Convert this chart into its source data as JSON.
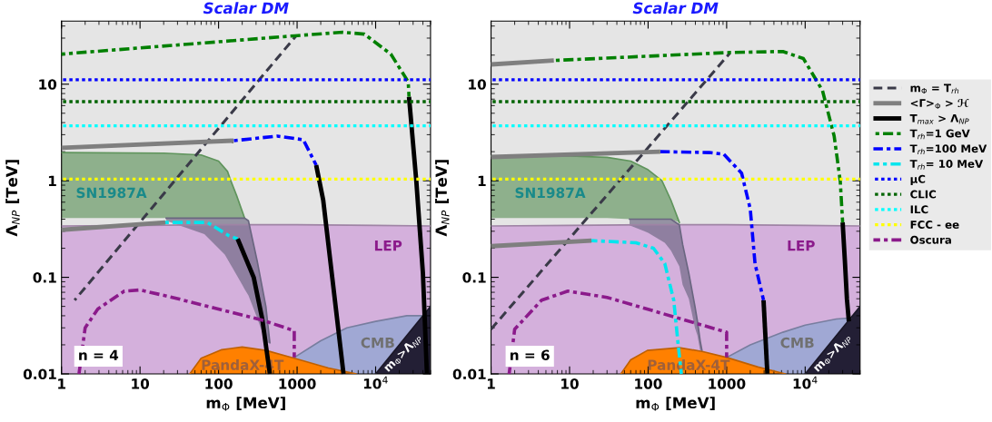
{
  "chart_data": [
    {
      "type": "line",
      "title": "Scalar DM",
      "xlabel": "m$_{Φ}$ [MeV]",
      "ylabel": "Λ$_{NP}$ [TeV]",
      "log": "xy",
      "grid": false,
      "legend": false,
      "xlim": [
        1,
        50000
      ],
      "ylim": [
        0.01,
        45
      ],
      "xticks": [
        1,
        10,
        100,
        1000,
        {
          "value": 10000,
          "label": "10$^{4}$"
        }
      ],
      "yticks": [
        0.01,
        0.1,
        1,
        10
      ],
      "series": [
        {
          "type": "area",
          "color": "#d4b0dc",
          "x": [
            1,
            10,
            100,
            1000,
            10000,
            50000
          ],
          "values": [
            0.34,
            0.345,
            0.35,
            0.35,
            0.345,
            0.34
          ]
        },
        {
          "color": "#5f945c",
          "line_style": "solid",
          "x": [
            1,
            20,
            60,
            100,
            130,
            143,
            170,
            215
          ],
          "lower": [
            0.41,
            0.41,
            0.41,
            0.41,
            0.41,
            0.41,
            0.41,
            0.41
          ],
          "upper": [
            1.96,
            1.93,
            1.85,
            1.6,
            1.25,
            1.0,
            0.7,
            0.41
          ],
          "values": [
            1.96,
            1.93,
            1.85,
            1.6,
            1.25,
            1.0,
            0.7,
            0.41
          ]
        },
        {
          "color": "#6a6680",
          "line_style": "solid",
          "x": [
            21.5,
            66,
            120,
            200,
            215,
            240,
            310,
            400,
            450
          ],
          "lower": [
            0.385,
            0.28,
            0.172,
            0.084,
            0.075,
            0.065,
            0.038,
            0.021,
            0.021
          ],
          "upper": [
            0.41,
            0.41,
            0.41,
            0.41,
            0.41,
            0.385,
            0.148,
            0.05,
            0.021
          ],
          "values": [
            0.41,
            0.41,
            0.41,
            0.41,
            0.41,
            0.385,
            0.148,
            0.05,
            0.021
          ]
        },
        {
          "type": "area",
          "color": "#a0a8d4",
          "x": [
            920,
            2000,
            4300,
            10000,
            25000,
            40000
          ],
          "values": [
            0.0148,
            0.022,
            0.03,
            0.035,
            0.04,
            0.04
          ]
        },
        {
          "type": "area",
          "color": "#ff8000",
          "x": [
            43,
            60,
            110,
            200,
            400,
            920,
            2500,
            5600
          ],
          "values": [
            0.01,
            0.0145,
            0.0178,
            0.019,
            0.0175,
            0.0145,
            0.0115,
            0.01
          ]
        },
        {
          "type": "area",
          "color": "#231f35",
          "x": [
            10000,
            50000
          ],
          "values": [
            0.01,
            0.05
          ]
        },
        {
          "color": "#3a3a48",
          "line_style": "dashed",
          "x": [
            1.47,
            970
          ],
          "values": [
            0.058,
            31.7
          ]
        },
        {
          "color": "#7f7f7f",
          "line_style": "solid",
          "x": [
            1,
            155
          ],
          "values": [
            2.19,
            2.6
          ]
        },
        {
          "color": "#000000",
          "line_style": "solid",
          "x": [
            26600,
            33000,
            40000,
            45000
          ],
          "values": [
            7.4,
            0.98,
            0.11,
            0.01
          ]
        },
        {
          "color": "#008000",
          "line_style": "dashdot",
          "x": [
            1,
            930,
            3800,
            7200,
            15600,
            26000,
            26600
          ],
          "values": [
            20.5,
            31.7,
            34.5,
            33,
            20.5,
            10.6,
            7.4
          ]
        },
        {
          "color": "#0000ff",
          "line_style": "dashdot",
          "x": [
            155,
            560,
            1200,
            1750
          ],
          "values": [
            2.6,
            2.9,
            2.66,
            1.45
          ]
        },
        {
          "color": "#00e5ee",
          "line_style": "dashdot",
          "x": [
            21,
            72,
            135,
            175
          ],
          "values": [
            0.37,
            0.37,
            0.27,
            0.25
          ]
        },
        {
          "color": "#7f7f7f",
          "line_style": "solid",
          "x": [
            1,
            21
          ],
          "values": [
            0.31,
            0.37
          ]
        },
        {
          "color": "#000000",
          "line_style": "solid",
          "x": [
            1750,
            2150,
            2800,
            3900
          ],
          "values": [
            1.45,
            0.63,
            0.1,
            0.01
          ]
        },
        {
          "color": "#000000",
          "line_style": "solid",
          "x": [
            175,
            280,
            360,
            450
          ],
          "values": [
            0.25,
            0.1,
            0.037,
            0.01
          ]
        },
        {
          "color": "#0000ff",
          "line_style": "dotted",
          "x": [
            1,
            50000
          ],
          "values": [
            11.1,
            11.1
          ]
        },
        {
          "color": "#006400",
          "line_style": "dotted",
          "x": [
            1,
            50000
          ],
          "values": [
            6.6,
            6.6
          ]
        },
        {
          "color": "#00ffff",
          "line_style": "dotted",
          "x": [
            1,
            50000
          ],
          "values": [
            3.7,
            3.7
          ]
        },
        {
          "color": "#ffff00",
          "line_style": "dotted",
          "x": [
            1,
            50000
          ],
          "values": [
            1.04,
            1.04
          ]
        },
        {
          "color": "#8b1a8b",
          "line_style": "dashdot",
          "x": [
            1.67,
            2.0,
            2.9,
            6.3,
            10,
            25.8,
            360,
            920,
            920
          ],
          "values": [
            0.01,
            0.03,
            0.047,
            0.072,
            0.074,
            0.062,
            0.036,
            0.028,
            0.0148
          ]
        }
      ],
      "annotations": [
        "SN1987A",
        "LEP",
        "CMB",
        "PandaX-4T",
        "n = 4",
        "m$_{Φ}$>Λ$_{NP}$"
      ]
    },
    {
      "type": "line",
      "title": "Scalar DM",
      "xlabel": "m$_{Φ}$ [MeV]",
      "ylabel": "Λ$_{NP}$ [TeV]",
      "log": "xy",
      "grid": false,
      "legend": "right",
      "xlim": [
        1,
        50000
      ],
      "ylim": [
        0.01,
        45
      ],
      "xticks": [
        1,
        10,
        100,
        1000,
        {
          "value": 10000,
          "label": "10$^{4}$"
        }
      ],
      "yticks": [
        0.01,
        0.1,
        1,
        10
      ],
      "series": [
        {
          "type": "area",
          "color": "#d4b0dc",
          "x": [
            1,
            10,
            100,
            1000,
            10000,
            50000
          ],
          "values": [
            0.34,
            0.345,
            0.35,
            0.35,
            0.345,
            0.34
          ]
        },
        {
          "color": "#5f945c",
          "line_style": "solid",
          "x": [
            1,
            10,
            30,
            60,
            100,
            150,
            195,
            250
          ],
          "lower": [
            0.41,
            0.41,
            0.41,
            0.4,
            0.4,
            0.4,
            0.4,
            0.37
          ],
          "upper": [
            1.8,
            1.8,
            1.75,
            1.6,
            1.3,
            1.0,
            0.63,
            0.37
          ],
          "values": [
            1.8,
            1.8,
            1.75,
            1.6,
            1.3,
            1.0,
            0.63,
            0.37
          ]
        },
        {
          "color": "#6a6680",
          "line_style": "solid",
          "x": [
            58,
            100,
            163,
            195,
            250,
            275,
            330,
            395,
            425,
            460,
            485
          ],
          "lower": [
            0.345,
            0.29,
            0.228,
            0.19,
            0.13,
            0.084,
            0.06,
            0.03,
            0.025,
            0.0175,
            0.0175
          ],
          "upper": [
            0.4,
            0.4,
            0.4,
            0.4,
            0.35,
            0.22,
            0.11,
            0.05,
            0.035,
            0.022,
            0.0175
          ],
          "values": [
            0.4,
            0.4,
            0.4,
            0.4,
            0.35,
            0.22,
            0.11,
            0.05,
            0.035,
            0.022,
            0.0175
          ]
        },
        {
          "type": "area",
          "color": "#a0a8d4",
          "x": [
            1000,
            2000,
            5200,
            10000,
            25000,
            38000
          ],
          "values": [
            0.0148,
            0.02,
            0.027,
            0.032,
            0.037,
            0.038
          ]
        },
        {
          "type": "area",
          "color": "#ff8000",
          "x": [
            45,
            60,
            98,
            250,
            500,
            1000,
            2500,
            5600
          ],
          "values": [
            0.01,
            0.014,
            0.0175,
            0.0187,
            0.017,
            0.0148,
            0.0118,
            0.01
          ]
        },
        {
          "type": "area",
          "color": "#231f35",
          "x": [
            10000,
            50000
          ],
          "values": [
            0.01,
            0.05
          ]
        },
        {
          "name": "m$_{Φ}$ = T$_{rh}$",
          "color": "#3a3a48",
          "line_style": "dashed",
          "x": [
            1,
            1100
          ],
          "values": [
            0.029,
            21
          ]
        },
        {
          "name": "<Γ>$_{Φ}$ > ℋ",
          "color": "#7f7f7f",
          "line_style": "solid",
          "x": [
            1,
            6.3
          ],
          "values": [
            16,
            17.6
          ]
        },
        {
          "name": "T$_{max}$ > Λ$_{NP}$",
          "color": "#000000",
          "line_style": "solid",
          "x": [
            30000,
            32000,
            34000,
            36000
          ],
          "values": [
            0.37,
            0.15,
            0.06,
            0.035
          ]
        },
        {
          "name": "T$_{rh}$=1 GeV",
          "color": "#008000",
          "line_style": "dashdot",
          "x": [
            6.3,
            1100,
            5200,
            9500,
            16600,
            23400,
            28000,
            30000
          ],
          "values": [
            17.6,
            21.3,
            21.8,
            18.4,
            8.6,
            2.9,
            0.98,
            0.37
          ]
        },
        {
          "name": "T$_{rh}$=100 MeV",
          "color": "#0000ff",
          "line_style": "dashdot",
          "x": [
            143,
            600,
            920,
            1550,
            2000,
            2300,
            2950
          ],
          "values": [
            2.0,
            1.96,
            1.88,
            1.2,
            0.51,
            0.138,
            0.058
          ]
        },
        {
          "name": "T$_{rh}$= 10 MeV",
          "color": "#00e5ee",
          "line_style": "dashdot",
          "x": [
            19,
            70,
            117,
            163,
            212,
            240,
            265
          ],
          "values": [
            0.24,
            0.228,
            0.2,
            0.139,
            0.058,
            0.021,
            0.01
          ]
        },
        {
          "color": "#7f7f7f",
          "line_style": "solid",
          "x": [
            1,
            143
          ],
          "values": [
            1.76,
            2.0
          ]
        },
        {
          "color": "#7f7f7f",
          "line_style": "solid",
          "x": [
            1,
            19
          ],
          "values": [
            0.21,
            0.24
          ]
        },
        {
          "color": "#000000",
          "line_style": "solid",
          "x": [
            2950,
            3300
          ],
          "values": [
            0.058,
            0.01
          ]
        },
        {
          "name": "μC",
          "color": "#0000ff",
          "line_style": "dotted",
          "x": [
            1,
            50000
          ],
          "values": [
            11.1,
            11.1
          ]
        },
        {
          "name": "CLIC",
          "color": "#006400",
          "line_style": "dotted",
          "x": [
            1,
            50000
          ],
          "values": [
            6.6,
            6.6
          ]
        },
        {
          "name": "ILC",
          "color": "#00ffff",
          "line_style": "dotted",
          "x": [
            1,
            50000
          ],
          "values": [
            3.7,
            3.7
          ]
        },
        {
          "name": "FCC - ee",
          "color": "#ffff00",
          "line_style": "dotted",
          "x": [
            1,
            50000
          ],
          "values": [
            1.04,
            1.04
          ]
        },
        {
          "name": "Oscura",
          "color": "#8b1a8b",
          "line_style": "dashdot",
          "x": [
            1.7,
            2.0,
            4.4,
            9.5,
            30,
            1000,
            1000
          ],
          "values": [
            0.01,
            0.029,
            0.058,
            0.072,
            0.062,
            0.027,
            0.0148
          ]
        }
      ],
      "annotations": [
        "SN1987A",
        "LEP",
        "CMB",
        "PandaX-4T",
        "n = 6",
        "m$_{Φ}$>Λ$_{NP}$"
      ]
    }
  ]
}
